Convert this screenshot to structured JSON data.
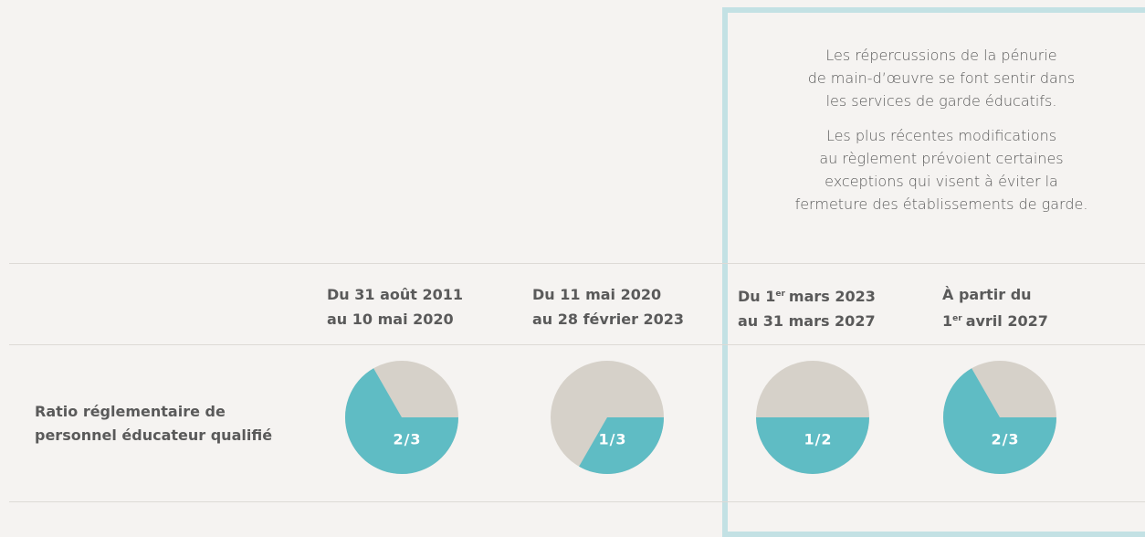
{
  "note": {
    "paragraphs": [
      [
        "Les répercussions de la pénurie",
        "de main-d’œuvre se font sentir dans",
        "les services de garde éducatifs."
      ],
      [
        "Les plus récentes modifications",
        "au règlement prévoient certaines",
        "exceptions qui visent à éviter la",
        "fermeture des établissements de garde."
      ]
    ]
  },
  "headings": [
    {
      "line1": "Du 31 août 2011",
      "line2": "au 10 mai 2020"
    },
    {
      "line1": "Du 11 mai 2020",
      "line2": "au 28 février 2023"
    },
    {
      "line1_a": "Du 1",
      "line1_sup": "er",
      "line1_b": "mars 2023",
      "line2": "au 31 mars 2027"
    },
    {
      "line1": "À partir du",
      "line2_a": "1",
      "line2_sup": "er",
      "line2_b": "avril 2027"
    }
  ],
  "row_label": [
    "Ratio réglementaire de",
    "personnel éducateur qualifié"
  ],
  "ratios": [
    {
      "value": 0.667,
      "label": "2/3"
    },
    {
      "value": 0.333,
      "label": "1/3"
    },
    {
      "value": 0.5,
      "label": "1/2"
    },
    {
      "value": 0.667,
      "label": "2/3"
    }
  ]
}
